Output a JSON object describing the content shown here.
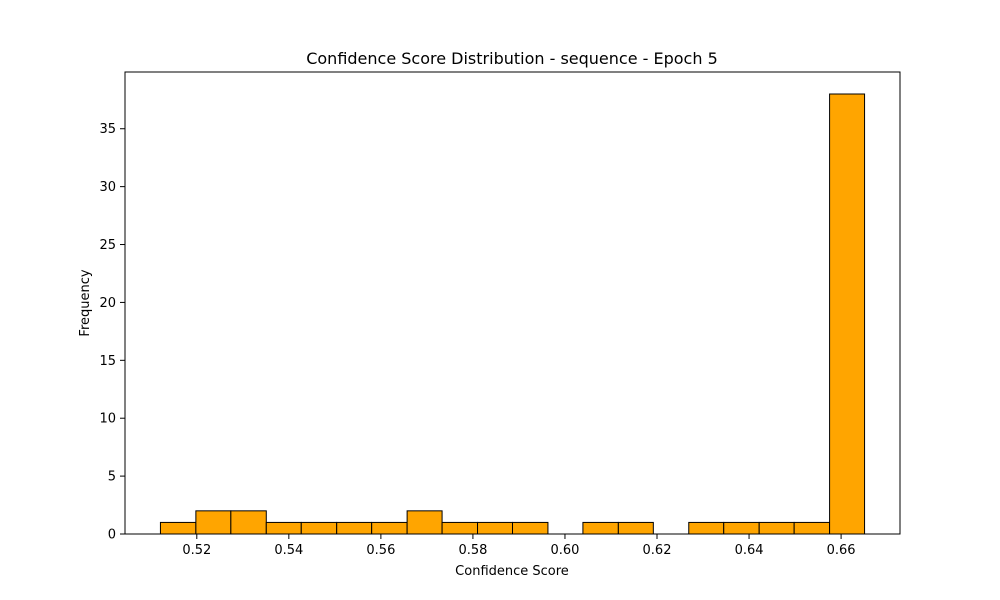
{
  "chart_data": {
    "type": "bar",
    "title": "Confidence Score Distribution - sequence - Epoch 5",
    "xlabel": "Confidence Score",
    "ylabel": "Frequency",
    "bin_edges": [
      0.5121,
      0.5198,
      0.5274,
      0.5351,
      0.5427,
      0.5504,
      0.558,
      0.5657,
      0.5733,
      0.581,
      0.5886,
      0.5963,
      0.6039,
      0.6116,
      0.6192,
      0.6269,
      0.6345,
      0.6422,
      0.6498,
      0.6575,
      0.6651
    ],
    "values": [
      1,
      2,
      2,
      1,
      1,
      1,
      1,
      2,
      1,
      1,
      1,
      0,
      1,
      1,
      0,
      1,
      1,
      1,
      1,
      38
    ],
    "xlim": [
      0.5044,
      0.6728
    ],
    "ylim": [
      0,
      39.9
    ],
    "xticks": [
      "0.52",
      "0.54",
      "0.56",
      "0.58",
      "0.60",
      "0.62",
      "0.64",
      "0.66"
    ],
    "yticks": [
      "0",
      "5",
      "10",
      "15",
      "20",
      "25",
      "30",
      "35"
    ],
    "bar_color": "#FFA500",
    "edge_color": "#000000",
    "grid": false,
    "legend": "none"
  }
}
